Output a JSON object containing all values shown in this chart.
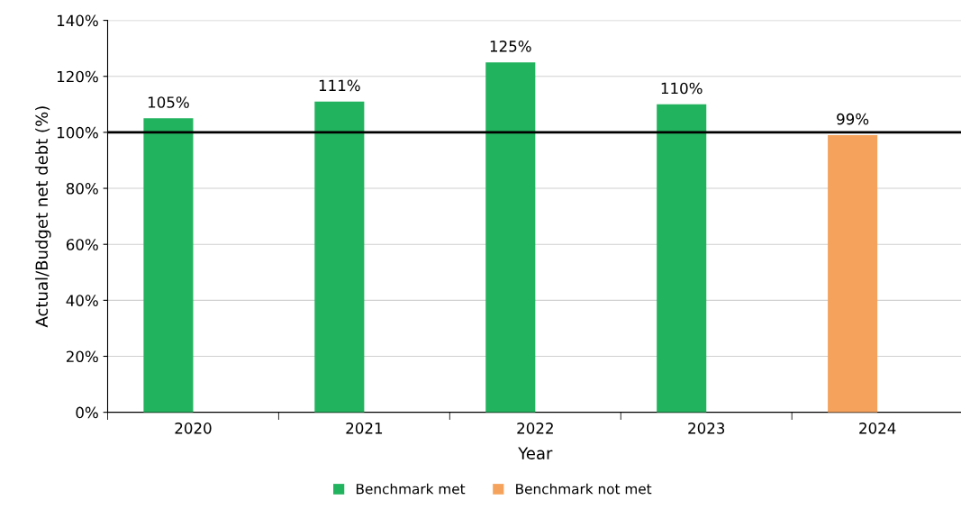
{
  "chart_data": {
    "type": "bar",
    "stacked": true,
    "xlabel": "Year",
    "ylabel": "Actual/Budget net debt (%)",
    "categories": [
      "2020",
      "2021",
      "2022",
      "2023",
      "2024"
    ],
    "series": [
      {
        "name": "Benchmark met",
        "color": "#22b35e",
        "values": [
          105,
          111,
          125,
          110,
          null
        ],
        "value_labels": [
          "105%",
          "111%",
          "125%",
          "110%",
          null
        ]
      },
      {
        "name": "Benchmark not met",
        "color": "#f5a35c",
        "values": [
          null,
          null,
          null,
          null,
          99
        ],
        "value_labels": [
          null,
          null,
          null,
          null,
          "99%"
        ]
      }
    ],
    "ylim": [
      0,
      140
    ],
    "yticks": [
      {
        "value": 0,
        "label": "0%"
      },
      {
        "value": 20,
        "label": "20%"
      },
      {
        "value": 40,
        "label": "40%"
      },
      {
        "value": 60,
        "label": "60%"
      },
      {
        "value": 80,
        "label": "80%"
      },
      {
        "value": 100,
        "label": "100%"
      },
      {
        "value": 120,
        "label": "120%"
      },
      {
        "value": 140,
        "label": "140%"
      }
    ],
    "grid": "y",
    "legend": "bottom",
    "ref_lines": [
      {
        "axis": "y",
        "value": 100,
        "color": "#000000"
      }
    ]
  }
}
